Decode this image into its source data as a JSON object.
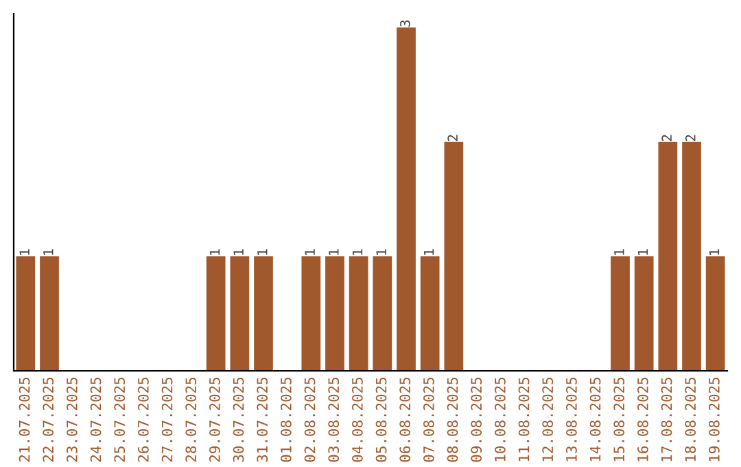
{
  "chart_data": {
    "type": "bar",
    "categories": [
      "21.07.2025",
      "22.07.2025",
      "23.07.2025",
      "24.07.2025",
      "25.07.2025",
      "26.07.2025",
      "27.07.2025",
      "28.07.2025",
      "29.07.2025",
      "30.07.2025",
      "31.07.2025",
      "01.08.2025",
      "02.08.2025",
      "03.08.2025",
      "04.08.2025",
      "05.08.2025",
      "06.08.2025",
      "07.08.2025",
      "08.08.2025",
      "09.08.2025",
      "10.08.2025",
      "11.08.2025",
      "12.08.2025",
      "13.08.2025",
      "14.08.2025",
      "15.08.2025",
      "16.08.2025",
      "17.08.2025",
      "18.08.2025",
      "19.08.2025"
    ],
    "values": [
      1,
      1,
      0,
      0,
      0,
      0,
      0,
      0,
      1,
      1,
      1,
      0,
      1,
      1,
      1,
      1,
      3,
      1,
      2,
      0,
      0,
      0,
      0,
      0,
      0,
      1,
      1,
      2,
      2,
      1
    ],
    "value_labels": [
      "1",
      "1",
      null,
      null,
      null,
      null,
      null,
      null,
      "1",
      "1",
      "1",
      null,
      "1",
      "1",
      "1",
      "1",
      "3",
      "1",
      "2",
      null,
      null,
      null,
      null,
      null,
      null,
      "1",
      "1",
      "2",
      "2",
      "1"
    ],
    "color": "#a0582c",
    "grid": false,
    "legend": false
  }
}
